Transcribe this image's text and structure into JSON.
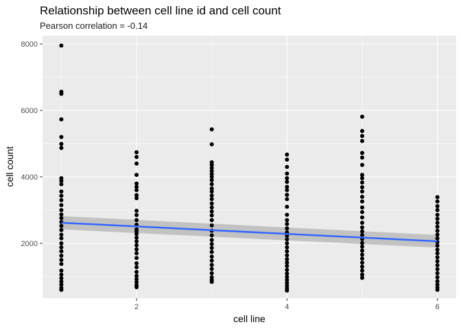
{
  "chart_data": {
    "type": "scatter",
    "title": "Relationship between cell line id and cell count",
    "subtitle": "Pearson correlation = -0.14",
    "xlabel": "cell line",
    "ylabel": "cell count",
    "xlim": [
      0.75,
      6.25
    ],
    "ylim": [
      350,
      8250
    ],
    "xticks": [
      2,
      4,
      6
    ],
    "xtick_labels": [
      "2",
      "4",
      "6"
    ],
    "yticks": [
      2000,
      4000,
      6000,
      8000
    ],
    "ytick_labels": [
      "2000",
      "4000",
      "6000",
      "8000"
    ],
    "grid": true,
    "panel_background": "#ebebeb",
    "grid_color": "#ffffff",
    "point_color": "#000000",
    "fit_line_color": "#3366ff",
    "confidence_band_color": "#bebebe",
    "series": [
      {
        "x": 1,
        "y": [
          7950,
          6560,
          6500,
          5730,
          5200,
          4990,
          4870,
          3960,
          3880,
          3780,
          3560,
          3430,
          3300,
          3150,
          3000,
          2870,
          2760,
          2640,
          2520,
          2400,
          2260,
          2150,
          2000,
          1880,
          1760,
          1630,
          1500,
          1380,
          1180,
          1060,
          950,
          850,
          760,
          660,
          600
        ]
      },
      {
        "x": 2,
        "y": [
          4740,
          4600,
          4400,
          4060,
          3800,
          3700,
          3600,
          3450,
          3360,
          2980,
          2850,
          2700,
          2560,
          2420,
          2350,
          2280,
          2170,
          2060,
          1940,
          1820,
          1700,
          1560,
          1400,
          1280,
          1140,
          1020,
          920,
          830,
          740,
          680
        ]
      },
      {
        "x": 3,
        "y": [
          5430,
          4980,
          4440,
          4360,
          4270,
          4180,
          4090,
          4000,
          3900,
          3780,
          3650,
          3560,
          3440,
          3330,
          3200,
          3080,
          2960,
          2840,
          2700,
          2540,
          2380,
          2240,
          2100,
          1980,
          1860,
          1740,
          1600,
          1480,
          1350,
          1230,
          1100,
          980,
          900,
          840
        ]
      },
      {
        "x": 4,
        "y": [
          4670,
          4520,
          4300,
          4100,
          3960,
          3850,
          3700,
          3600,
          3460,
          3330,
          3100,
          2860,
          2700,
          2580,
          2450,
          2330,
          2230,
          2120,
          2000,
          1880,
          1760,
          1640,
          1520,
          1420,
          1320,
          1200,
          1090,
          990,
          900,
          810,
          730,
          650,
          580
        ]
      },
      {
        "x": 5,
        "y": [
          5810,
          5380,
          5230,
          5080,
          4720,
          4580,
          4360,
          4060,
          3960,
          3830,
          3690,
          3560,
          3400,
          3260,
          3080,
          2940,
          2780,
          2620,
          2480,
          2360,
          2250,
          2130,
          2010,
          1900,
          1780,
          1660,
          1540,
          1420,
          1300,
          1180,
          1060,
          960
        ]
      },
      {
        "x": 6,
        "y": [
          3390,
          3260,
          3120,
          3000,
          2860,
          2740,
          2620,
          2500,
          2380,
          2260,
          2150,
          2040,
          1930,
          1810,
          1700,
          1580,
          1460,
          1340,
          1220,
          1100,
          980,
          860,
          760,
          670,
          600
        ]
      }
    ],
    "fit": {
      "x": [
        1,
        6
      ],
      "y": [
        2620,
        2060
      ],
      "ci_lower": [
        2420,
        1870
      ],
      "ci_upper": [
        2820,
        2250
      ]
    }
  }
}
